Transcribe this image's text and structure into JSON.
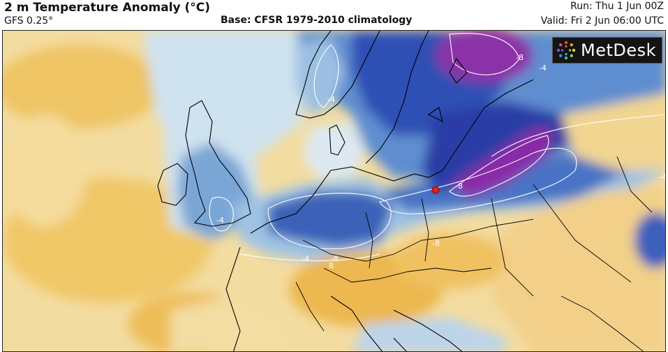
{
  "header": {
    "title": "2 m Temperature Anomaly (°C)",
    "model": "GFS 0.25°",
    "base": "Base: CFSR 1979-2010 climatology",
    "run": "Run: Thu 1 Jun 00Z",
    "valid": "Valid: Fri 2 Jun 06:00 UTC"
  },
  "logo": {
    "text": "MetDesk"
  },
  "map": {
    "contour_labels": [
      "-4",
      "-4",
      "-8",
      "-4",
      "-8",
      "-8",
      "-4",
      "-8",
      "8",
      "-4"
    ],
    "marker": {
      "color": "#e21f1f"
    },
    "colors": {
      "warm": "#f0c868",
      "light_warm": "#f7e2a6",
      "neutral": "#f4f4ee",
      "light_cold": "#b8d6ea",
      "cold": "#4b7fc6",
      "very_cold": "#2341a8",
      "extreme_cold": "#8a2ba8",
      "contour": "#ffffff",
      "coast": "#000000"
    }
  }
}
